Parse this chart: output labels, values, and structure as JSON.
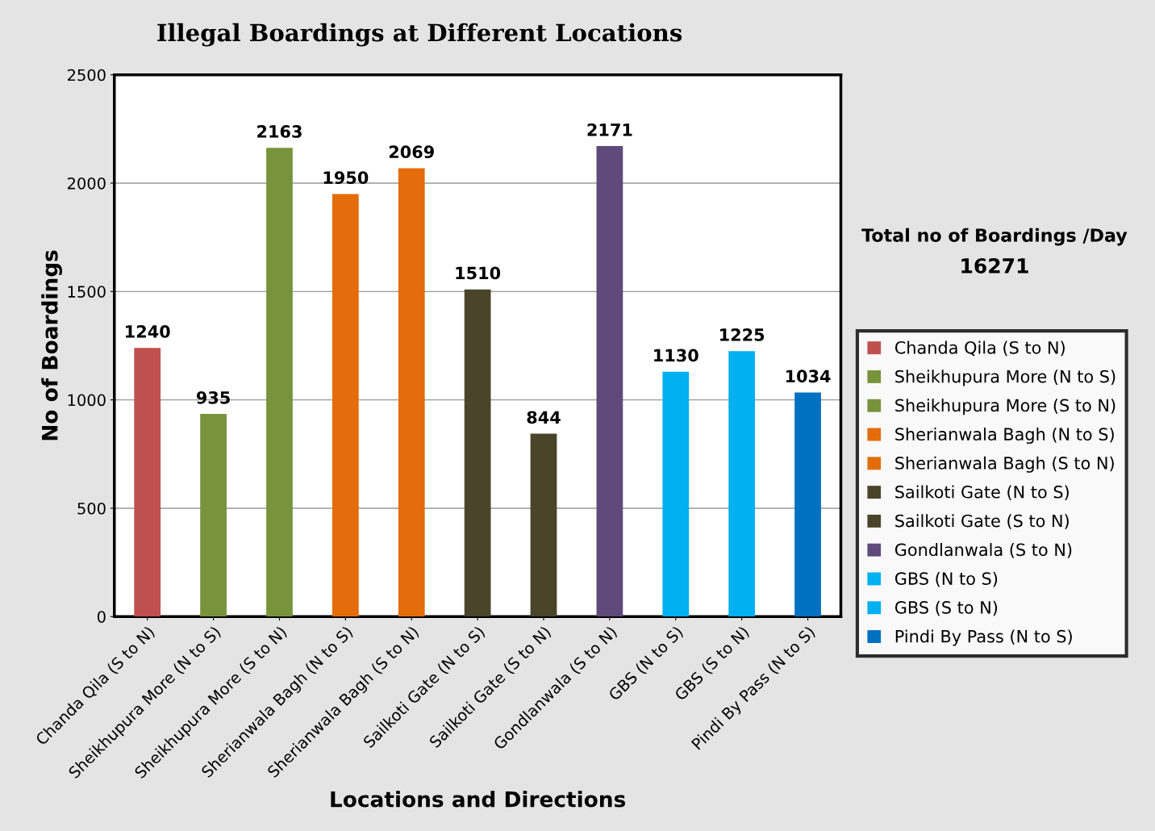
{
  "chart_data": {
    "type": "bar",
    "title": "Illegal Boardings at Different Locations",
    "xlabel": "Locations and Directions",
    "ylabel": "No of Boardings",
    "categories": [
      "Chanda Qila (S to N)",
      "Sheikhupura More (N to S)",
      "Sheikhupura More (S to N)",
      "Sherianwala Bagh (N to S)",
      "Sherianwala Bagh (S to N)",
      "Sailkoti Gate (N to S)",
      "Sailkoti Gate (S to N)",
      "Gondlanwala (S to N)",
      "GBS (N to S)",
      "GBS (S to N)",
      "Pindi By Pass (N to S)"
    ],
    "series": [
      {
        "name": "Chanda Qila (S to N)",
        "color": "#c0504d",
        "values": [
          1240,
          null,
          null,
          null,
          null,
          null,
          null,
          null,
          null,
          null,
          null
        ]
      },
      {
        "name": "Sheikhupura More (N to S)",
        "color": "#77933c",
        "values": [
          null,
          935,
          null,
          null,
          null,
          null,
          null,
          null,
          null,
          null,
          null
        ]
      },
      {
        "name": "Sheikhupura More (S to N)",
        "color": "#77933c",
        "values": [
          null,
          null,
          2163,
          null,
          null,
          null,
          null,
          null,
          null,
          null,
          null
        ]
      },
      {
        "name": "Sherianwala Bagh (N to S)",
        "color": "#e46c0a",
        "values": [
          null,
          null,
          null,
          1950,
          null,
          null,
          null,
          null,
          null,
          null,
          null
        ]
      },
      {
        "name": "Sherianwala Bagh (S to N)",
        "color": "#e46c0a",
        "values": [
          null,
          null,
          null,
          null,
          2069,
          null,
          null,
          null,
          null,
          null,
          null
        ]
      },
      {
        "name": "Sailkoti Gate (N to S)",
        "color": "#4a452a",
        "values": [
          null,
          null,
          null,
          null,
          null,
          1510,
          null,
          null,
          null,
          null,
          null
        ]
      },
      {
        "name": "Sailkoti Gate (S to N)",
        "color": "#4a452a",
        "values": [
          null,
          null,
          null,
          null,
          null,
          null,
          844,
          null,
          null,
          null,
          null
        ]
      },
      {
        "name": "Gondlanwala (S to N)",
        "color": "#604a7b",
        "values": [
          null,
          null,
          null,
          null,
          null,
          null,
          null,
          2171,
          null,
          null,
          null
        ]
      },
      {
        "name": "GBS (N to S)",
        "color": "#00b0f0",
        "values": [
          null,
          null,
          null,
          null,
          null,
          null,
          null,
          null,
          1130,
          null,
          null
        ]
      },
      {
        "name": "GBS (S to N)",
        "color": "#00b0f0",
        "values": [
          null,
          null,
          null,
          null,
          null,
          null,
          null,
          null,
          null,
          1225,
          null
        ]
      },
      {
        "name": "Pindi By Pass (N to S)",
        "color": "#0070c0",
        "values": [
          null,
          null,
          null,
          null,
          null,
          null,
          null,
          null,
          null,
          null,
          1034
        ]
      }
    ],
    "ylim": [
      0,
      2500
    ],
    "yticks": [
      0,
      500,
      1000,
      1500,
      2000,
      2500
    ],
    "grid": "y",
    "legend": "right",
    "data_labels": true,
    "annotations": [
      "Total no of Boardings /Day",
      "16271"
    ]
  }
}
